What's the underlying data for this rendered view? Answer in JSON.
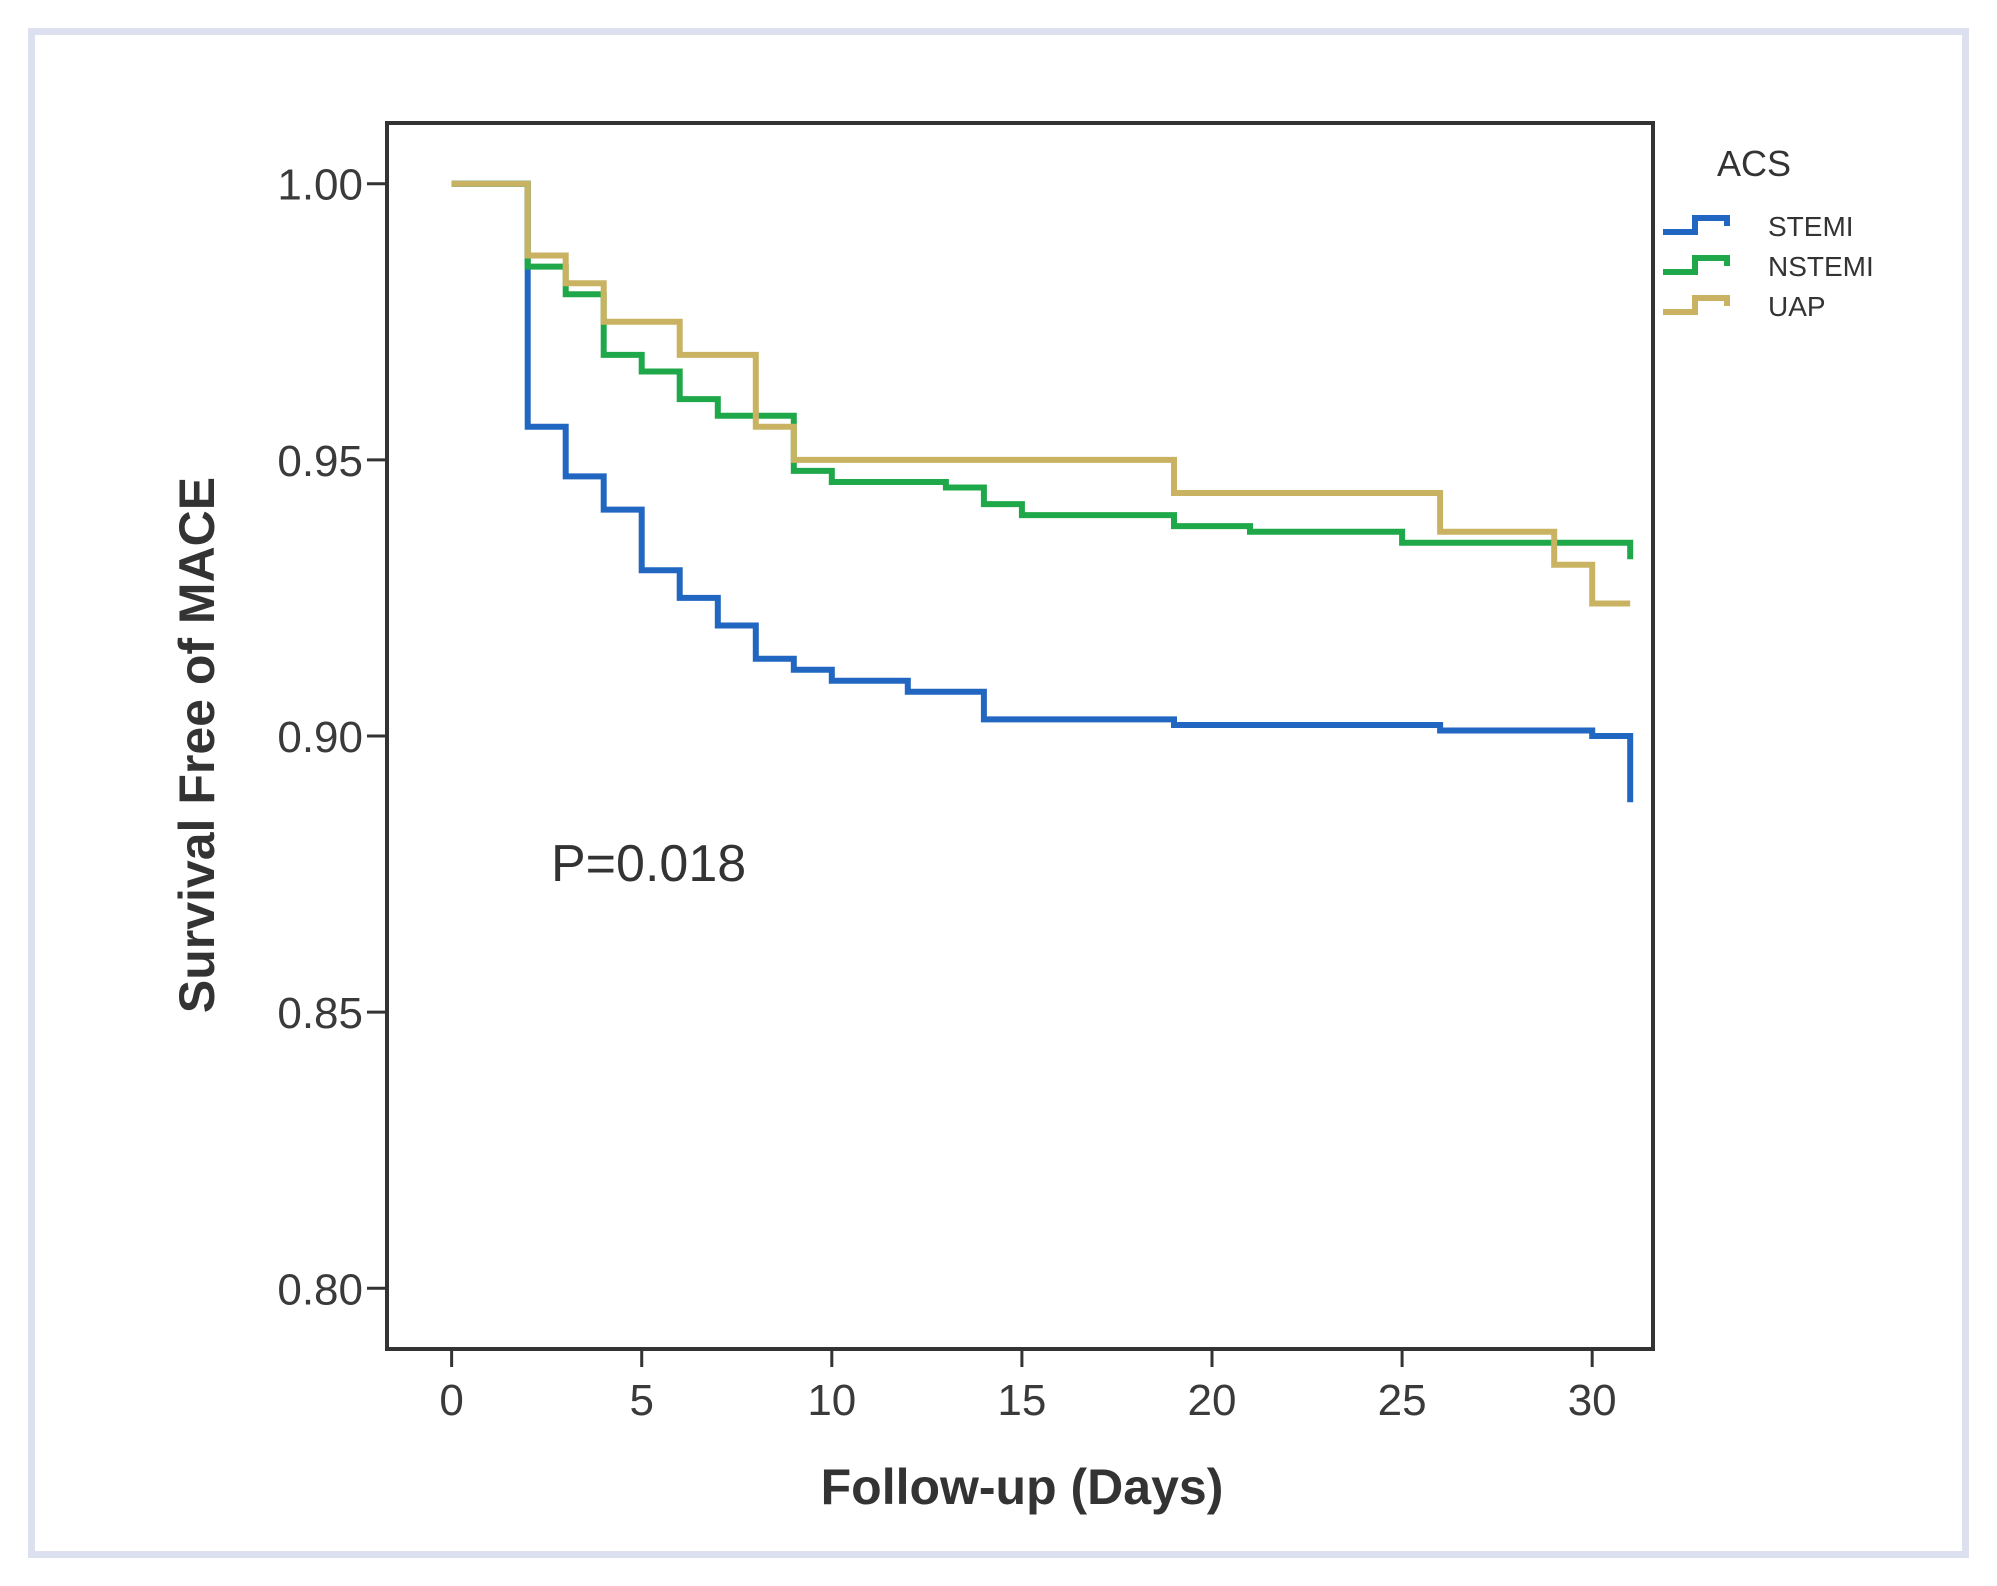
{
  "chart_data": {
    "type": "line",
    "step": true,
    "xlabel": "Follow-up (Days)",
    "ylabel": "Survival Free of MACE",
    "xlim": [
      -1.7,
      31.6
    ],
    "ylim": [
      0.789,
      1.011
    ],
    "xticks": [
      0,
      5,
      10,
      15,
      20,
      25,
      30
    ],
    "xtick_labels": [
      "0",
      "5",
      "10",
      "15",
      "20",
      "25",
      "30"
    ],
    "yticks": [
      0.8,
      0.85,
      0.9,
      0.95,
      1.0
    ],
    "ytick_labels": [
      "0.80",
      "0.85",
      "0.90",
      "0.95",
      "1.00"
    ],
    "legend_title": "ACS",
    "legend_position": "top-right outside",
    "annotation": "P=0.018",
    "series": [
      {
        "name": "STEMI",
        "color": "#2166c0",
        "x": [
          0,
          2,
          3,
          4,
          5,
          6,
          7,
          8,
          9,
          10,
          12,
          14,
          19,
          26,
          30,
          31,
          31
        ],
        "y": [
          1.0,
          0.956,
          0.947,
          0.941,
          0.93,
          0.925,
          0.92,
          0.914,
          0.912,
          0.91,
          0.908,
          0.903,
          0.902,
          0.901,
          0.9,
          0.899,
          0.888
        ]
      },
      {
        "name": "NSTEMI",
        "color": "#1ea84a",
        "x": [
          0,
          2,
          3,
          4,
          5,
          6,
          7,
          9,
          10,
          13,
          14,
          15,
          19,
          21,
          25,
          31,
          31
        ],
        "y": [
          1.0,
          0.985,
          0.98,
          0.969,
          0.966,
          0.961,
          0.958,
          0.948,
          0.946,
          0.945,
          0.942,
          0.94,
          0.938,
          0.937,
          0.935,
          0.935,
          0.932
        ]
      },
      {
        "name": "UAP",
        "color": "#c9b363",
        "x": [
          0,
          2,
          3,
          4,
          6,
          8,
          9,
          19,
          26,
          29,
          30,
          31
        ],
        "y": [
          1.0,
          0.987,
          0.982,
          0.975,
          0.969,
          0.956,
          0.95,
          0.944,
          0.937,
          0.931,
          0.924,
          0.924
        ]
      }
    ]
  }
}
